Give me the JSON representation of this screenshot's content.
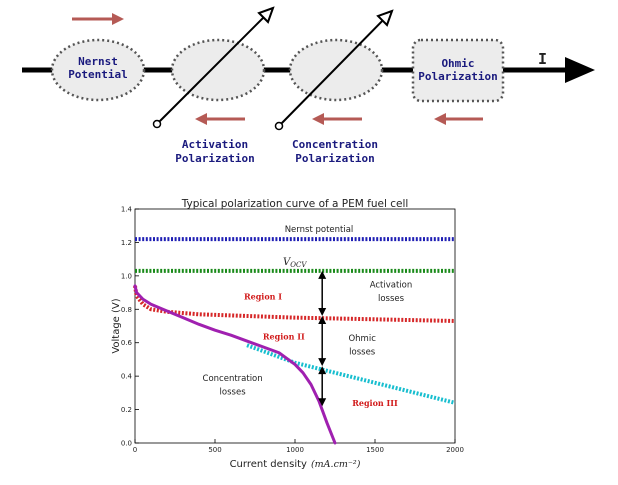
{
  "circuit": {
    "nernst_label": [
      "Nernst",
      "Potential"
    ],
    "activation_label": [
      "Activation",
      "Polarization"
    ],
    "concentration_label": [
      "Concentration",
      "Polarization"
    ],
    "ohmic_label": [
      "Ohmic",
      "Polarization"
    ],
    "current_label": "I",
    "arrow_color": "#b55a55"
  },
  "chart_data": {
    "type": "line",
    "title": "Typical polarization curve of a PEM fuel cell",
    "xlabel": "Current density",
    "xunit": "(mA.cm⁻²)",
    "ylabel": "Voltage (V)",
    "xlim": [
      0,
      2000
    ],
    "ylim": [
      0,
      1.4
    ],
    "xticks": [
      0,
      500,
      1000,
      1500,
      2000
    ],
    "yticks": [
      0.0,
      0.2,
      0.4,
      0.6,
      0.8,
      1.0,
      1.2,
      1.4
    ],
    "series": [
      {
        "name": "Nernst potential",
        "color": "#1f1fb4",
        "style": "dotted",
        "x": [
          0,
          2000
        ],
        "y": [
          1.22,
          1.22
        ]
      },
      {
        "name": "V",
        "name_sub": "OCV",
        "color": "#1a8a1a",
        "style": "dotted",
        "x": [
          0,
          2000
        ],
        "y": [
          1.03,
          1.03
        ]
      },
      {
        "color": "#d62728",
        "style": "dotted",
        "x": [
          0,
          10,
          50,
          100,
          200,
          400,
          700,
          1000,
          1500,
          2000
        ],
        "y": [
          0.94,
          0.88,
          0.83,
          0.8,
          0.785,
          0.77,
          0.76,
          0.75,
          0.74,
          0.73
        ]
      },
      {
        "color": "#17becf",
        "style": "dotted",
        "x": [
          700,
          1000,
          1500,
          2000
        ],
        "y": [
          0.585,
          0.48,
          0.36,
          0.24
        ]
      },
      {
        "color": "#a020b0",
        "style": "solid",
        "x": [
          0,
          10,
          50,
          100,
          200,
          300,
          400,
          500,
          600,
          700,
          800,
          900,
          1000,
          1050,
          1100,
          1150,
          1200,
          1250
        ],
        "y": [
          0.94,
          0.9,
          0.86,
          0.83,
          0.79,
          0.75,
          0.71,
          0.675,
          0.645,
          0.61,
          0.575,
          0.54,
          0.47,
          0.42,
          0.35,
          0.25,
          0.12,
          0.0
        ]
      }
    ],
    "annotations": [
      {
        "text": "Activation",
        "x": 1600,
        "y": 0.93
      },
      {
        "text": "losses",
        "x": 1600,
        "y": 0.85
      },
      {
        "text": "Ohmic",
        "x": 1420,
        "y": 0.61
      },
      {
        "text": "losses",
        "x": 1420,
        "y": 0.53
      },
      {
        "text": "Concentration",
        "x": 610,
        "y": 0.37
      },
      {
        "text": "losses",
        "x": 610,
        "y": 0.29
      }
    ],
    "region_labels": [
      {
        "text": "Region I",
        "x": 800,
        "y": 0.86
      },
      {
        "text": "Region II",
        "x": 930,
        "y": 0.62
      },
      {
        "text": "Region III",
        "x": 1500,
        "y": 0.22
      }
    ],
    "double_arrows": [
      {
        "x": 1170,
        "y1": 1.03,
        "y2": 0.76
      },
      {
        "x": 1170,
        "y1": 0.76,
        "y2": 0.46
      },
      {
        "x": 1170,
        "y1": 0.46,
        "y2": 0.22
      }
    ]
  }
}
